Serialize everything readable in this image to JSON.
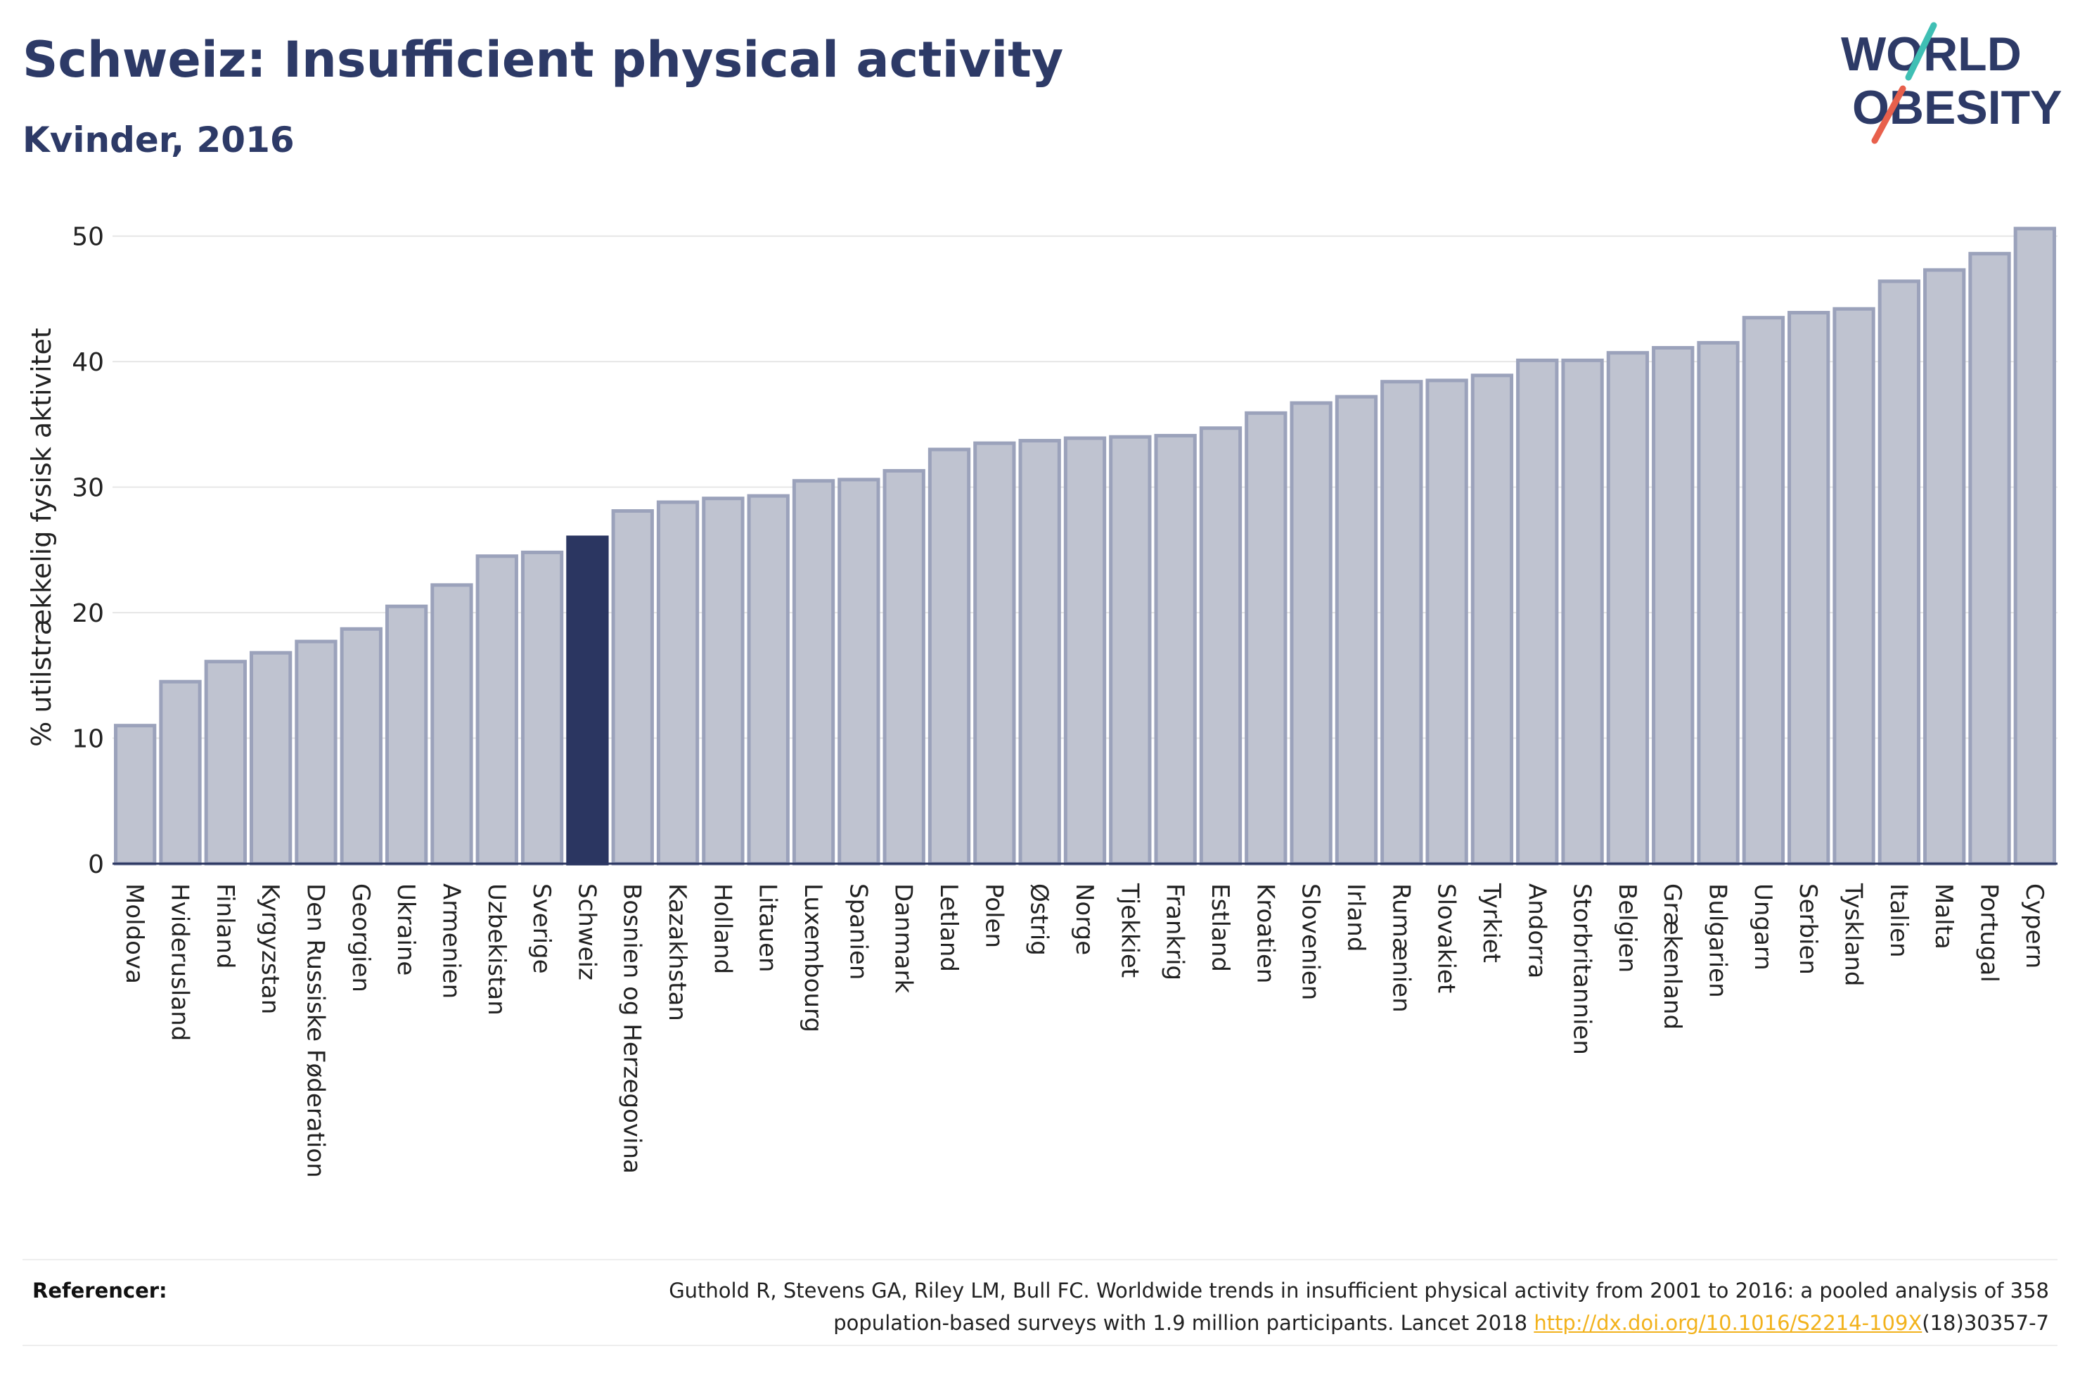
{
  "title": "Schweiz: Insufficient physical activity",
  "subtitle": "Kvinder, 2016",
  "logo": {
    "line1": "WORLD",
    "line2": "OBESITY",
    "accent_colors": [
      "#3fbfb4",
      "#e8604c"
    ]
  },
  "colors": {
    "bar": "#bfc3d0",
    "bar_stroke": "#9ba2bb",
    "highlight": "#2b3661",
    "axis": "#2b3661",
    "grid": "#e6e6e6"
  },
  "chart_data": {
    "type": "bar",
    "ylabel": "% utilstrækkelig fysisk aktivitet",
    "ylim": [
      0,
      52
    ],
    "yticks": [
      0,
      10,
      20,
      30,
      40,
      50
    ],
    "highlight": "Schweiz",
    "categories": [
      "Moldova",
      "Hviderusland",
      "Finland",
      "Kyrgyzstan",
      "Den Russiske Føderation",
      "Georgien",
      "Ukraine",
      "Armenien",
      "Uzbekistan",
      "Sverige",
      "Schweiz",
      "Bosnien og Herzegovina",
      "Kazakhstan",
      "Holland",
      "Litauen",
      "Luxembourg",
      "Spanien",
      "Danmark",
      "Letland",
      "Polen",
      "Østrig",
      "Norge",
      "Tjekkiet",
      "Frankrig",
      "Estland",
      "Kroatien",
      "Slovenien",
      "Irland",
      "Rumænien",
      "Slovakiet",
      "Tyrkiet",
      "Andorra",
      "Storbritannien",
      "Belgien",
      "Grækenland",
      "Bulgarien",
      "Ungarn",
      "Serbien",
      "Tyskland",
      "Italien",
      "Malta",
      "Portugal",
      "Cypern"
    ],
    "values": [
      11.0,
      14.5,
      16.1,
      16.8,
      17.7,
      18.7,
      20.5,
      22.2,
      24.5,
      24.8,
      26.0,
      28.1,
      28.8,
      29.1,
      29.3,
      30.5,
      30.6,
      31.3,
      33.0,
      33.5,
      33.7,
      33.9,
      34.0,
      34.1,
      34.7,
      35.9,
      36.7,
      37.2,
      38.4,
      38.5,
      38.9,
      40.1,
      40.1,
      40.7,
      41.1,
      41.5,
      43.5,
      43.9,
      44.2,
      46.4,
      47.3,
      48.6,
      50.6
    ]
  },
  "footer": {
    "label": "Referencer:",
    "line1": "Guthold R, Stevens GA, Riley LM, Bull FC. Worldwide trends in insufficient physical activity from 2001 to 2016: a pooled analysis of 358",
    "line2_before": "population-based surveys with 1.9 million participants. Lancet 2018 ",
    "link": "http://dx.doi.org/10.1016/S2214-109X",
    "line2_after": "(18)30357-7"
  }
}
